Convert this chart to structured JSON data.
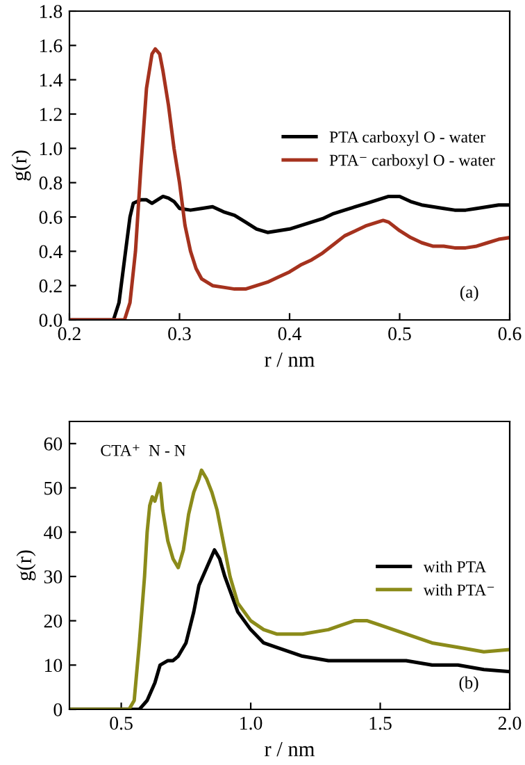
{
  "chart_data": [
    {
      "type": "line",
      "xlabel": "r / nm",
      "ylabel": "g(r)",
      "xlim": [
        0.2,
        0.6
      ],
      "xticks": [
        0.2,
        0.3,
        0.4,
        0.5,
        0.6
      ],
      "ylim": [
        0.0,
        1.8
      ],
      "yticks": [
        {
          "value": 0.0,
          "label": "0.0"
        },
        0.2,
        0.4,
        0.6,
        0.8,
        {
          "value": 1.0,
          "label": "1.0"
        },
        1.2,
        1.4,
        1.6,
        1.8
      ],
      "legend": "right",
      "grid": false,
      "annotations": [
        "(a)"
      ],
      "series": [
        {
          "name": "PTA carboxyl O - water",
          "color": "#000000",
          "x": [
            0.2,
            0.24,
            0.245,
            0.25,
            0.255,
            0.258,
            0.265,
            0.27,
            0.275,
            0.28,
            0.285,
            0.29,
            0.295,
            0.3,
            0.31,
            0.32,
            0.33,
            0.34,
            0.35,
            0.36,
            0.37,
            0.38,
            0.39,
            0.4,
            0.41,
            0.42,
            0.43,
            0.44,
            0.45,
            0.46,
            0.47,
            0.48,
            0.49,
            0.5,
            0.51,
            0.52,
            0.53,
            0.54,
            0.55,
            0.56,
            0.57,
            0.58,
            0.59,
            0.6
          ],
          "values": [
            0,
            0,
            0.1,
            0.35,
            0.6,
            0.68,
            0.7,
            0.7,
            0.68,
            0.7,
            0.72,
            0.71,
            0.69,
            0.65,
            0.64,
            0.65,
            0.66,
            0.63,
            0.61,
            0.57,
            0.53,
            0.51,
            0.52,
            0.53,
            0.55,
            0.57,
            0.59,
            0.62,
            0.64,
            0.66,
            0.68,
            0.7,
            0.72,
            0.72,
            0.69,
            0.67,
            0.66,
            0.65,
            0.64,
            0.64,
            0.65,
            0.66,
            0.67,
            0.67
          ]
        },
        {
          "name": "PTA⁻ carboxyl O - water",
          "color": "#a5321e",
          "x": [
            0.2,
            0.25,
            0.255,
            0.26,
            0.265,
            0.27,
            0.275,
            0.278,
            0.282,
            0.285,
            0.29,
            0.295,
            0.3,
            0.305,
            0.31,
            0.315,
            0.32,
            0.33,
            0.34,
            0.35,
            0.36,
            0.37,
            0.38,
            0.39,
            0.4,
            0.41,
            0.42,
            0.43,
            0.44,
            0.45,
            0.46,
            0.47,
            0.48,
            0.485,
            0.49,
            0.5,
            0.51,
            0.52,
            0.53,
            0.54,
            0.55,
            0.56,
            0.57,
            0.58,
            0.59,
            0.6
          ],
          "values": [
            0,
            0,
            0.1,
            0.4,
            0.9,
            1.35,
            1.55,
            1.58,
            1.55,
            1.45,
            1.25,
            1.0,
            0.8,
            0.55,
            0.4,
            0.3,
            0.24,
            0.2,
            0.19,
            0.18,
            0.18,
            0.2,
            0.22,
            0.25,
            0.28,
            0.32,
            0.35,
            0.39,
            0.44,
            0.49,
            0.52,
            0.55,
            0.57,
            0.58,
            0.57,
            0.52,
            0.48,
            0.45,
            0.43,
            0.43,
            0.42,
            0.42,
            0.43,
            0.45,
            0.47,
            0.48
          ]
        }
      ]
    },
    {
      "type": "line",
      "xlabel": "r / nm",
      "ylabel": "g(r)",
      "xlim": [
        0.3,
        2.0
      ],
      "xticks": [
        0.5,
        {
          "value": 1.0,
          "label": "1.0"
        },
        1.5,
        {
          "value": 2.0,
          "label": "2.0"
        }
      ],
      "ylim": [
        0,
        65
      ],
      "yticks": [
        0,
        10,
        20,
        30,
        40,
        50,
        60
      ],
      "legend": "right",
      "grid": false,
      "annotations": [
        "CTA⁺  N - N",
        "(b)"
      ],
      "series": [
        {
          "name": "with PTA",
          "color": "#000000",
          "x": [
            0.3,
            0.57,
            0.6,
            0.63,
            0.65,
            0.68,
            0.7,
            0.72,
            0.75,
            0.78,
            0.8,
            0.83,
            0.86,
            0.88,
            0.9,
            0.95,
            1.0,
            1.05,
            1.1,
            1.2,
            1.3,
            1.4,
            1.5,
            1.6,
            1.7,
            1.8,
            1.9,
            2.0
          ],
          "values": [
            0,
            0,
            2,
            6,
            10,
            11,
            11,
            12,
            15,
            22,
            28,
            32,
            36,
            34,
            30,
            22,
            18,
            15,
            14,
            12,
            11,
            11,
            11,
            11,
            10,
            10,
            9,
            8.5
          ]
        },
        {
          "name": "with PTA⁻",
          "color": "#8b8b1a",
          "x": [
            0.3,
            0.53,
            0.55,
            0.57,
            0.59,
            0.6,
            0.61,
            0.62,
            0.63,
            0.64,
            0.65,
            0.66,
            0.68,
            0.7,
            0.72,
            0.74,
            0.76,
            0.78,
            0.8,
            0.81,
            0.83,
            0.85,
            0.87,
            0.9,
            0.92,
            0.95,
            1.0,
            1.05,
            1.1,
            1.2,
            1.3,
            1.35,
            1.4,
            1.45,
            1.5,
            1.6,
            1.7,
            1.8,
            1.9,
            2.0
          ],
          "values": [
            0,
            0,
            2,
            15,
            30,
            40,
            46,
            48,
            47,
            49,
            51,
            45,
            38,
            34,
            32,
            36,
            44,
            49,
            52,
            54,
            52,
            49,
            45,
            36,
            30,
            24,
            20,
            18,
            17,
            17,
            18,
            19,
            20,
            20,
            19,
            17,
            15,
            14,
            13,
            13.5
          ]
        }
      ]
    }
  ]
}
